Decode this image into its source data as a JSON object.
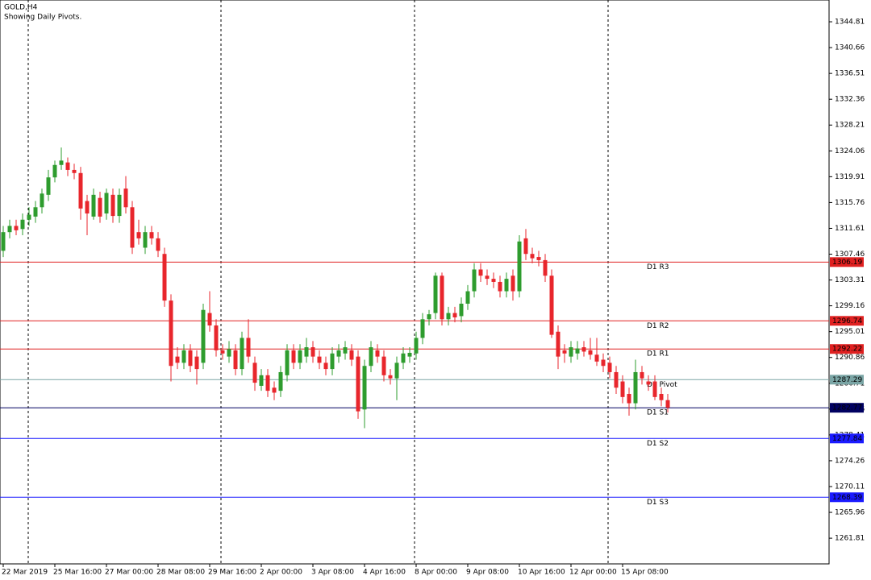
{
  "chart_data": {
    "type": "candlestick",
    "title": "GOLD,H4",
    "subtitle": "Showing Daily Pivots.",
    "categories": [
      "22 Mar 2019",
      null,
      null,
      null,
      null,
      null,
      null,
      null,
      "25 Mar 16:00",
      null,
      null,
      null,
      null,
      null,
      null,
      null,
      "27 Mar 00:00",
      null,
      null,
      null,
      null,
      null,
      null,
      null,
      "28 Mar 08:00",
      null,
      null,
      null,
      null,
      null,
      null,
      null,
      "29 Mar 16:00",
      null,
      null,
      null,
      null,
      null,
      null,
      null,
      "2 Apr 00:00",
      null,
      null,
      null,
      null,
      null,
      null,
      null,
      "3 Apr 08:00",
      null,
      null,
      null,
      null,
      null,
      null,
      null,
      "4 Apr 16:00",
      null,
      null,
      null,
      null,
      null,
      null,
      null,
      "8 Apr 00:00",
      null,
      null,
      null,
      null,
      null,
      null,
      null,
      "9 Apr 08:00",
      null,
      null,
      null,
      null,
      null,
      null,
      null,
      "10 Apr 16:00",
      null,
      null,
      null,
      null,
      null,
      null,
      null,
      "12 Apr 00:00",
      null,
      null,
      null,
      null,
      null,
      null,
      null,
      "15 Apr 08:00",
      null,
      null,
      null,
      null,
      null,
      null,
      null
    ],
    "open": [
      1308,
      1311,
      1312,
      1311.5,
      1313,
      1313.5,
      1315,
      1317,
      1319.8,
      1321.8,
      1322.2,
      1321,
      1320.5,
      1316,
      1313.5,
      1316.5,
      1314,
      1317,
      1313.6,
      1318,
      1315,
      1311,
      1308.5,
      1311,
      1310,
      1307.5,
      1300,
      1291,
      1290,
      1292,
      1291,
      1290,
      1298,
      1296,
      1292,
      1291,
      1292,
      1289,
      1294,
      1290,
      1286.3,
      1288,
      1286,
      1285.5,
      1288,
      1292,
      1290,
      1291,
      1292.5,
      1291,
      1290,
      1289,
      1291,
      1291.5,
      1292,
      1291,
      1282.5,
      1289.5,
      1292,
      1291,
      1288,
      1287.5,
      1290,
      1291,
      1291.5,
      1294,
      1297,
      1298,
      1304,
      1297,
      1298,
      1297.5,
      1299.5,
      1301.5,
      1305,
      1304,
      1303.5,
      1303,
      1301.5,
      1304,
      1301.5,
      1310,
      1307.5,
      1307,
      1306.5,
      1304,
      1295,
      1292,
      1291,
      1291.5,
      1292.5,
      1292,
      1291.3,
      1290.5,
      1290,
      1288.5,
      1287,
      1285,
      1283.5,
      1288.5,
      1287,
      1287,
      1285,
      1284
    ],
    "high": [
      1312,
      1313,
      1313,
      1314,
      1315,
      1316,
      1318,
      1321,
      1322.5,
      1324.6,
      1323,
      1322,
      1321.5,
      1317,
      1318,
      1317.5,
      1318,
      1318,
      1318,
      1320,
      1316,
      1313,
      1312,
      1312,
      1311,
      1308.5,
      1301,
      1292.5,
      1293,
      1293,
      1292,
      1299.5,
      1301.5,
      1297,
      1293,
      1293.5,
      1293,
      1295,
      1297,
      1291,
      1289,
      1289,
      1287,
      1289.5,
      1293,
      1293,
      1293,
      1294,
      1293.5,
      1292,
      1291,
      1292.5,
      1293,
      1293.5,
      1293,
      1292,
      1290.5,
      1293.5,
      1293,
      1292,
      1289,
      1291,
      1292.5,
      1292.5,
      1295,
      1298,
      1298.5,
      1304.5,
      1304.5,
      1299,
      1299,
      1300.5,
      1302.5,
      1306,
      1306,
      1305,
      1304.5,
      1304,
      1304.5,
      1305,
      1310.5,
      1311.5,
      1308.5,
      1308,
      1307.5,
      1305,
      1296,
      1293,
      1293.5,
      1293.5,
      1293.5,
      1294,
      1294,
      1291.5,
      1291,
      1289.5,
      1288,
      1286,
      1290.5,
      1289.5,
      1288,
      1288,
      1286,
      1285
    ],
    "low": [
      1307,
      1310,
      1310.5,
      1310.5,
      1312,
      1312.5,
      1314,
      1316,
      1319,
      1321,
      1320,
      1319.5,
      1313,
      1310.5,
      1313,
      1312.5,
      1313,
      1312.5,
      1312.5,
      1314,
      1307.5,
      1309,
      1307.5,
      1309,
      1307,
      1299,
      1287,
      1289,
      1289,
      1288.5,
      1286.5,
      1289,
      1295,
      1291,
      1290.5,
      1290,
      1288,
      1288,
      1290,
      1285.5,
      1285.5,
      1284.5,
      1284,
      1284.5,
      1287,
      1289,
      1289,
      1290,
      1290,
      1289,
      1288,
      1288,
      1290,
      1290.5,
      1289.5,
      1281,
      1279.5,
      1288.5,
      1290,
      1287,
      1286.5,
      1284,
      1289,
      1290,
      1290.5,
      1293,
      1296,
      1297,
      1296,
      1296,
      1296.5,
      1296.5,
      1298.5,
      1300.5,
      1303,
      1302.5,
      1302,
      1300.5,
      1300.5,
      1300,
      1300.5,
      1306.5,
      1306,
      1305.5,
      1303,
      1294,
      1289,
      1290,
      1290,
      1290.5,
      1291,
      1290.5,
      1289.5,
      1288.5,
      1287.5,
      1285,
      1283.5,
      1281.5,
      1282.5,
      1286.5,
      1285.5,
      1284,
      1283,
      1282
    ],
    "close": [
      1311,
      1312,
      1311.3,
      1313,
      1313.8,
      1315,
      1317.2,
      1319.8,
      1321.8,
      1322.5,
      1321,
      1320.5,
      1314.8,
      1314,
      1317,
      1313.5,
      1317.3,
      1313.6,
      1317,
      1315,
      1308.5,
      1310,
      1311,
      1310,
      1308,
      1300,
      1289.5,
      1290,
      1292,
      1289.5,
      1289,
      1298.5,
      1296,
      1292,
      1291.5,
      1292.2,
      1289,
      1294,
      1291,
      1286.8,
      1288,
      1285.5,
      1285.2,
      1288.5,
      1292,
      1290,
      1292,
      1292.5,
      1291,
      1290,
      1289,
      1291.5,
      1292,
      1292.5,
      1290.5,
      1282.2,
      1289.5,
      1292.5,
      1291,
      1288,
      1287.5,
      1290,
      1291.5,
      1291.6,
      1294,
      1297,
      1297.8,
      1304,
      1297,
      1298,
      1297.3,
      1299.5,
      1301.5,
      1305,
      1304,
      1303.5,
      1303,
      1301.5,
      1303.5,
      1301.5,
      1309.5,
      1307.5,
      1306.8,
      1306.5,
      1304,
      1294.5,
      1291,
      1291.5,
      1292.5,
      1292.3,
      1291.8,
      1291.3,
      1290.2,
      1289.5,
      1288.5,
      1286,
      1284.5,
      1283.5,
      1288.5,
      1287.5,
      1286.5,
      1284.5,
      1284,
      1282.8
    ],
    "up_color": "#2e9c2e",
    "down_color": "#e8262c",
    "ylim": [
      1257.68,
      1348.31
    ],
    "yticks": [
      1344.81,
      1340.66,
      1336.51,
      1332.36,
      1328.21,
      1324.06,
      1319.91,
      1315.76,
      1311.61,
      1307.46,
      1303.31,
      1299.16,
      1295.01,
      1290.86,
      1286.71,
      1282.56,
      1278.41,
      1274.26,
      1270.11,
      1265.96,
      1261.81
    ],
    "pivots": [
      {
        "name": "D1 R3",
        "value": 1306.19,
        "color": "#e02020"
      },
      {
        "name": "D1 R2",
        "value": 1296.74,
        "color": "#e02020"
      },
      {
        "name": "D1 R1",
        "value": 1292.22,
        "color": "#e02020"
      },
      {
        "name": "D1 Pivot",
        "value": 1287.29,
        "color": "#7aa5a5"
      },
      {
        "name": "D1 S1",
        "value": 1282.77,
        "color": "#000060"
      },
      {
        "name": "D1 S2",
        "value": 1277.84,
        "color": "#1a1aff"
      },
      {
        "name": "D1 S3",
        "value": 1268.39,
        "color": "#1a1aff"
      }
    ]
  }
}
